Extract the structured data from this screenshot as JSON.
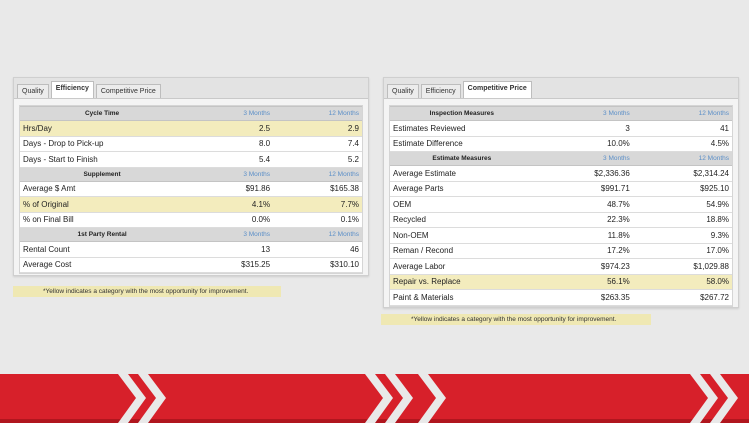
{
  "left_panel": {
    "tabs": [
      {
        "label": "Quality"
      },
      {
        "label": "Efficiency"
      },
      {
        "label": "Competitive Price"
      }
    ],
    "active_tab": 1,
    "sections": [
      {
        "title": "Cycle Time",
        "col1": "3 Months",
        "col2": "12 Months",
        "rows": [
          {
            "label": "Hrs/Day",
            "v3": "2.5",
            "v12": "2.9",
            "highlight": true
          },
          {
            "label": "Days - Drop to Pick-up",
            "v3": "8.0",
            "v12": "7.4",
            "highlight": false
          },
          {
            "label": "Days - Start to Finish",
            "v3": "5.4",
            "v12": "5.2",
            "highlight": false
          }
        ]
      },
      {
        "title": "Supplement",
        "col1": "3 Months",
        "col2": "12 Months",
        "rows": [
          {
            "label": "Average $ Amt",
            "v3": "$91.86",
            "v12": "$165.38",
            "highlight": false
          },
          {
            "label": "% of Original",
            "v3": "4.1%",
            "v12": "7.7%",
            "highlight": true
          },
          {
            "label": "% on Final Bill",
            "v3": "0.0%",
            "v12": "0.1%",
            "highlight": false
          }
        ]
      },
      {
        "title": "1st Party Rental",
        "col1": "3 Months",
        "col2": "12 Months",
        "rows": [
          {
            "label": "Rental Count",
            "v3": "13",
            "v12": "46",
            "highlight": false
          },
          {
            "label": "Average Cost",
            "v3": "$315.25",
            "v12": "$310.10",
            "highlight": false
          }
        ]
      }
    ],
    "note": "*Yellow indicates a category with the most opportunity for improvement."
  },
  "right_panel": {
    "tabs": [
      {
        "label": "Quality"
      },
      {
        "label": "Efficiency"
      },
      {
        "label": "Competitive Price"
      }
    ],
    "active_tab": 2,
    "sections": [
      {
        "title": "Inspection Measures",
        "col1": "3 Months",
        "col2": "12 Months",
        "rows": [
          {
            "label": "Estimates Reviewed",
            "v3": "3",
            "v12": "41",
            "highlight": false
          },
          {
            "label": "Estimate Difference",
            "v3": "10.0%",
            "v12": "4.5%",
            "highlight": false
          }
        ]
      },
      {
        "title": "Estimate Measures",
        "col1": "3 Months",
        "col2": "12 Months",
        "rows": [
          {
            "label": "Average Estimate",
            "v3": "$2,336.36",
            "v12": "$2,314.24",
            "highlight": false
          },
          {
            "label": "Average Parts",
            "v3": "$991.71",
            "v12": "$925.10",
            "highlight": false
          },
          {
            "label": "OEM",
            "v3": "48.7%",
            "v12": "54.9%",
            "highlight": false
          },
          {
            "label": "Recycled",
            "v3": "22.3%",
            "v12": "18.8%",
            "highlight": false
          },
          {
            "label": "Non-OEM",
            "v3": "11.8%",
            "v12": "9.3%",
            "highlight": false
          },
          {
            "label": "Reman / Recond",
            "v3": "17.2%",
            "v12": "17.0%",
            "highlight": false
          },
          {
            "label": "Average Labor",
            "v3": "$974.23",
            "v12": "$1,029.88",
            "highlight": false
          },
          {
            "label": "Repair vs. Replace",
            "v3": "56.1%",
            "v12": "58.0%",
            "highlight": true
          },
          {
            "label": "Paint & Materials",
            "v3": "$263.35",
            "v12": "$267.72",
            "highlight": false
          }
        ]
      }
    ],
    "note": "*Yellow indicates a category with the most opportunity for improvement."
  },
  "colors": {
    "highlight": "#f3ecbd",
    "banner_red": "#d7202a",
    "column_header_blue": "#5b8fc8"
  }
}
